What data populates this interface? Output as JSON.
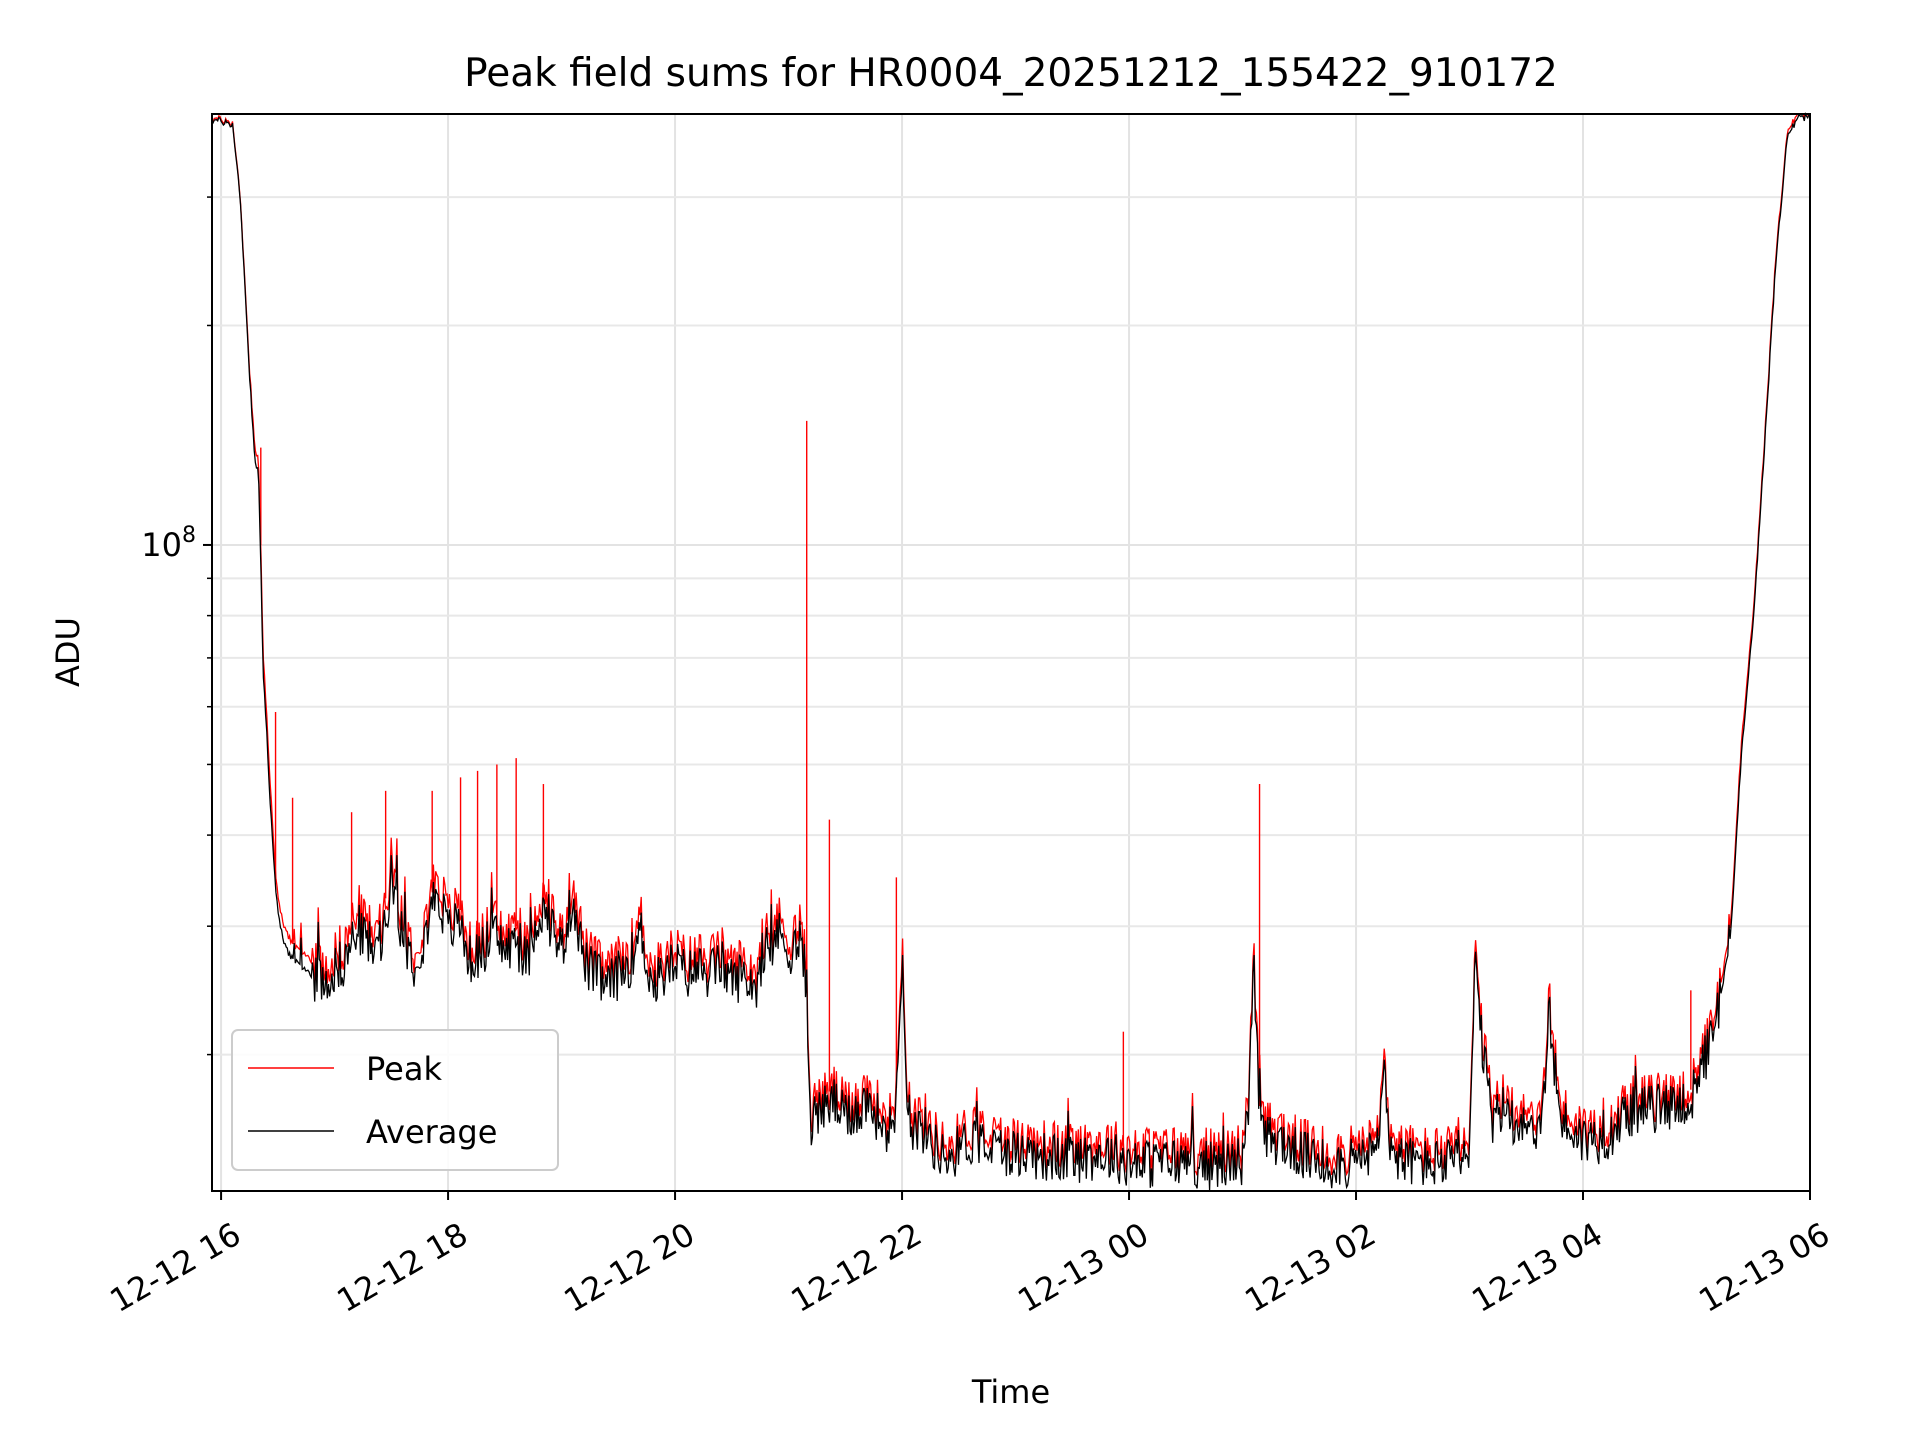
{
  "chart_data": {
    "type": "line",
    "title": "Peak field sums for HR0004_20251212_155422_910172",
    "xlabel": "Time",
    "ylabel": "ADU",
    "yscale": "log",
    "grid": true,
    "legend_position": "lower-left",
    "x_unit": "hours since 2025-12-12 16:00",
    "xlim": [
      -0.08,
      14.0
    ],
    "ylim": [
      13000000,
      390000000
    ],
    "x_ticks": [
      0,
      2,
      4,
      6,
      8,
      10,
      12,
      14
    ],
    "x_tick_labels": [
      "12-12 16",
      "12-12 18",
      "12-12 20",
      "12-12 22",
      "12-13 00",
      "12-13 02",
      "12-13 04",
      "12-13 06"
    ],
    "y_major_ticks": [
      100000000
    ],
    "y_major_tick_label_base": "10",
    "y_major_tick_label_exp": "8",
    "y_minor_ticks": [
      20000000,
      30000000,
      40000000,
      50000000,
      60000000,
      70000000,
      80000000,
      90000000,
      200000000,
      300000000
    ],
    "series": [
      {
        "name": "Peak",
        "color": "#ff0000",
        "x": [
          -0.08,
          0.1,
          0.17,
          0.25,
          0.3,
          0.33,
          0.35,
          0.37,
          0.4,
          0.43,
          0.46,
          0.48,
          0.5,
          0.53,
          0.56,
          0.6,
          0.65,
          0.72,
          0.8,
          0.9,
          1.0,
          1.1,
          1.2,
          1.3,
          1.4,
          1.5,
          1.6,
          1.7,
          1.8,
          1.9,
          2.0,
          2.1,
          2.2,
          2.3,
          2.4,
          2.5,
          2.6,
          2.7,
          2.8,
          2.9,
          3.0,
          3.1,
          3.2,
          3.3,
          3.4,
          3.5,
          3.6,
          3.7,
          3.8,
          3.9,
          4.0,
          4.1,
          4.2,
          4.3,
          4.4,
          4.5,
          4.6,
          4.7,
          4.8,
          4.9,
          5.0,
          5.1,
          5.15,
          5.16,
          5.18,
          5.2,
          5.3,
          5.4,
          5.5,
          5.6,
          5.7,
          5.8,
          5.9,
          5.95,
          6.0,
          6.05,
          6.1,
          6.2,
          6.3,
          6.4,
          6.5,
          6.6,
          6.8,
          7.0,
          7.2,
          7.4,
          7.6,
          7.8,
          7.95,
          8.0,
          8.2,
          8.4,
          8.6,
          8.8,
          9.0,
          9.05,
          9.1,
          9.15,
          9.2,
          9.3,
          9.4,
          9.5,
          9.6,
          9.7,
          9.8,
          10.0,
          10.2,
          10.25,
          10.3,
          10.4,
          10.6,
          10.8,
          10.95,
          11.0,
          11.05,
          11.1,
          11.2,
          11.3,
          11.4,
          11.5,
          11.6,
          11.65,
          11.7,
          11.8,
          12.0,
          12.2,
          12.4,
          12.6,
          12.8,
          12.9,
          13.0,
          13.05,
          13.1,
          13.2,
          13.3,
          13.4,
          13.5,
          13.6,
          13.7,
          13.8,
          13.9,
          14.0
        ],
        "y": [
          385000000,
          380000000,
          300000000,
          175000000,
          135000000,
          130000000,
          100000000,
          70000000,
          60000000,
          48000000,
          40000000,
          35000000,
          33000000,
          31000000,
          30000000,
          29000000,
          28000000,
          27500000,
          27000000,
          26500000,
          27500000,
          28500000,
          32000000,
          30000000,
          29000000,
          37000000,
          31000000,
          28000000,
          31000000,
          36000000,
          31000000,
          32000000,
          28000000,
          29000000,
          31000000,
          29000000,
          30000000,
          28000000,
          33000000,
          32000000,
          29000000,
          35000000,
          28000000,
          27000000,
          26000000,
          27000000,
          28000000,
          31000000,
          26000000,
          27000000,
          28000000,
          27000000,
          27500000,
          27000000,
          28000000,
          26500000,
          27000000,
          26000000,
          28000000,
          31000000,
          29000000,
          30000000,
          27000000,
          26000000,
          19000000,
          17000000,
          17500000,
          18000000,
          17000000,
          17500000,
          18000000,
          17000000,
          16500000,
          18000000,
          29000000,
          18000000,
          16500000,
          16500000,
          15500000,
          15000000,
          15500000,
          16000000,
          15500000,
          15300000,
          15200000,
          15000000,
          15100000,
          15200000,
          15000000,
          14800000,
          14800000,
          14900000,
          14800000,
          14700000,
          15000000,
          17000000,
          27500000,
          17000000,
          16000000,
          16000000,
          15500000,
          15300000,
          15000000,
          14800000,
          14800000,
          14800000,
          15500000,
          20500000,
          15500000,
          15000000,
          14800000,
          14800000,
          15000000,
          15100000,
          28000000,
          22000000,
          17000000,
          17500000,
          17000000,
          16800000,
          16600000,
          17000000,
          24000000,
          17000000,
          15900000,
          16000000,
          17300000,
          17500000,
          17600000,
          18000000,
          17800000,
          20000000,
          21000000,
          24000000,
          30000000,
          55000000,
          80000000,
          140000000,
          250000000,
          370000000,
          390000000,
          390000000
        ],
        "spikes": [
          {
            "x": 0.35,
            "y": 136000000
          },
          {
            "x": 0.48,
            "y": 59000000
          },
          {
            "x": 0.63,
            "y": 45000000
          },
          {
            "x": 1.15,
            "y": 43000000
          },
          {
            "x": 1.45,
            "y": 46000000
          },
          {
            "x": 1.86,
            "y": 46000000
          },
          {
            "x": 2.11,
            "y": 48000000
          },
          {
            "x": 2.26,
            "y": 49000000
          },
          {
            "x": 2.43,
            "y": 50000000
          },
          {
            "x": 2.6,
            "y": 51000000
          },
          {
            "x": 2.84,
            "y": 47000000
          },
          {
            "x": 5.16,
            "y": 148000000
          },
          {
            "x": 5.36,
            "y": 42000000
          },
          {
            "x": 5.95,
            "y": 35000000
          },
          {
            "x": 7.95,
            "y": 21500000
          },
          {
            "x": 9.15,
            "y": 47000000
          },
          {
            "x": 12.95,
            "y": 24500000
          }
        ]
      },
      {
        "name": "Average",
        "color": "#000000",
        "x": [
          -0.08,
          0.1,
          0.17,
          0.25,
          0.3,
          0.33,
          0.35,
          0.37,
          0.4,
          0.43,
          0.46,
          0.48,
          0.5,
          0.53,
          0.56,
          0.6,
          0.65,
          0.72,
          0.8,
          0.9,
          1.0,
          1.1,
          1.2,
          1.3,
          1.4,
          1.5,
          1.6,
          1.7,
          1.8,
          1.9,
          2.0,
          2.1,
          2.2,
          2.3,
          2.4,
          2.5,
          2.6,
          2.7,
          2.8,
          2.9,
          3.0,
          3.1,
          3.2,
          3.3,
          3.4,
          3.5,
          3.6,
          3.7,
          3.8,
          3.9,
          4.0,
          4.1,
          4.2,
          4.3,
          4.4,
          4.5,
          4.6,
          4.7,
          4.8,
          4.9,
          5.0,
          5.1,
          5.15,
          5.16,
          5.18,
          5.2,
          5.3,
          5.4,
          5.5,
          5.6,
          5.7,
          5.8,
          5.9,
          5.95,
          6.0,
          6.05,
          6.1,
          6.2,
          6.3,
          6.4,
          6.5,
          6.6,
          6.8,
          7.0,
          7.2,
          7.4,
          7.6,
          7.8,
          7.95,
          8.0,
          8.2,
          8.4,
          8.6,
          8.8,
          9.0,
          9.05,
          9.1,
          9.15,
          9.2,
          9.3,
          9.4,
          9.5,
          9.6,
          9.7,
          9.8,
          10.0,
          10.2,
          10.25,
          10.3,
          10.4,
          10.6,
          10.8,
          10.95,
          11.0,
          11.05,
          11.1,
          11.2,
          11.3,
          11.4,
          11.5,
          11.6,
          11.65,
          11.7,
          11.8,
          12.0,
          12.2,
          12.4,
          12.6,
          12.8,
          12.9,
          13.0,
          13.05,
          13.1,
          13.2,
          13.3,
          13.4,
          13.5,
          13.6,
          13.7,
          13.8,
          13.9,
          14.0
        ],
        "y": [
          383000000,
          378000000,
          298000000,
          172000000,
          130000000,
          125000000,
          95000000,
          66000000,
          57000000,
          45000000,
          38000000,
          33500000,
          31500000,
          29500000,
          28500000,
          27500000,
          26800000,
          26200000,
          25800000,
          25300000,
          26200000,
          27000000,
          30000000,
          28500000,
          27500000,
          35000000,
          29500000,
          26800000,
          29500000,
          34000000,
          29500000,
          30500000,
          26800000,
          27800000,
          29500000,
          27800000,
          28500000,
          26800000,
          31500000,
          30500000,
          27800000,
          33000000,
          26800000,
          25800000,
          24800000,
          25800000,
          26800000,
          29500000,
          24800000,
          25800000,
          26800000,
          25800000,
          26300000,
          25800000,
          26800000,
          25300000,
          25800000,
          24800000,
          26800000,
          29500000,
          27800000,
          28500000,
          25800000,
          24800000,
          18300000,
          16300000,
          16800000,
          17300000,
          16300000,
          16800000,
          17300000,
          16300000,
          15800000,
          17300000,
          27500000,
          17300000,
          15800000,
          15800000,
          14900000,
          14400000,
          14900000,
          15300000,
          14900000,
          14700000,
          14600000,
          14400000,
          14500000,
          14600000,
          14400000,
          14200000,
          14200000,
          14300000,
          14200000,
          14100000,
          14400000,
          16300000,
          26500000,
          16300000,
          15300000,
          15300000,
          14900000,
          14700000,
          14400000,
          14200000,
          14200000,
          14200000,
          14900000,
          19800000,
          14900000,
          14400000,
          14200000,
          14200000,
          14400000,
          14500000,
          27000000,
          21200000,
          16300000,
          16800000,
          16300000,
          16100000,
          15900000,
          16300000,
          23000000,
          16300000,
          15300000,
          15400000,
          16700000,
          16900000,
          17000000,
          17300000,
          17200000,
          19300000,
          20300000,
          23200000,
          29000000,
          53000000,
          78000000,
          137000000,
          245000000,
          365000000,
          385000000,
          387000000
        ]
      }
    ]
  }
}
